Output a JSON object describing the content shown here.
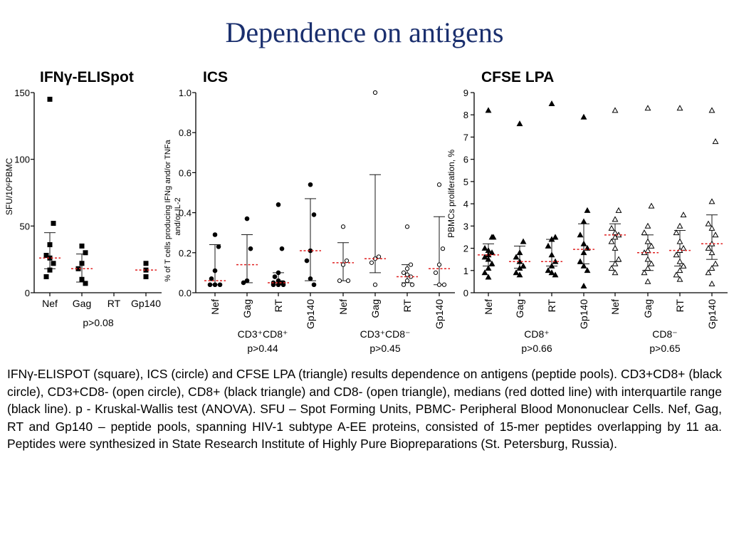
{
  "title": "Dependence on antigens",
  "panels": {
    "elispot": "IFNγ-ELISpot",
    "ics": "ICS",
    "cfse": "CFSE LPA"
  },
  "colors": {
    "title": "#1a2f6e",
    "median": "#e02020",
    "marks": "#000000"
  },
  "caption": "IFNγ-ELISPOT (square), ICS (circle) and CFSE LPA (triangle) results dependence on antigens (peptide pools). CD3+CD8+ (black circle), CD3+CD8- (open circle), CD8+ (black triangle) and CD8- (open triangle), medians (red dotted line) with interquartile range (black line). p - Kruskal-Wallis test (ANOVA). SFU – Spot Forming Units, PBMC- Peripheral Blood Mononuclear Cells. Nef, Gag, RT and Gp140 – peptide pools, spanning HIV-1 subtype A-EE proteins, consisted of 15-mer peptides overlapping by 11 aa. Peptides were synthesized in State Research Institute of Highly Pure Biopreparations (St. Petersburg, Russia).",
  "chart_data": [
    {
      "type": "scatter",
      "title": "IFNγ-ELISpot",
      "ylabel": "SFU/10⁶PBMC",
      "ylim": [
        0,
        150
      ],
      "yticks": [
        0,
        50,
        100,
        150
      ],
      "categories": [
        "Nef",
        "Gag",
        "RT",
        "Gp140"
      ],
      "marker": "filled-square",
      "points": [
        [
          145,
          52,
          36,
          28,
          26,
          22,
          17,
          12
        ],
        [
          35,
          30,
          22,
          18,
          10,
          7
        ],
        [],
        [
          22,
          17,
          12
        ]
      ],
      "medians": [
        26,
        18,
        null,
        17
      ],
      "iqr": [
        [
          18,
          45
        ],
        [
          8,
          29
        ],
        null,
        null
      ],
      "groups": [],
      "pvalues": [
        "p>0.08"
      ]
    },
    {
      "type": "scatter",
      "title": "ICS",
      "ylabel": "% of T cells producing IFNg and/or TNFa and/or IL-2",
      "ylim": [
        0,
        1.0
      ],
      "yticks": [
        0.0,
        0.2,
        0.4,
        0.6,
        0.8,
        1.0
      ],
      "categories": [
        "Nef",
        "Gag",
        "RT",
        "Gp140",
        "Nef",
        "Gag",
        "RT",
        "Gp140"
      ],
      "marker": [
        "filled-circle",
        "filled-circle",
        "filled-circle",
        "filled-circle",
        "open-circle",
        "open-circle",
        "open-circle",
        "open-circle"
      ],
      "points": [
        [
          0.29,
          0.23,
          0.11,
          0.07,
          0.04,
          0.04,
          0.04
        ],
        [
          0.37,
          0.22,
          0.06,
          0.05
        ],
        [
          0.44,
          0.22,
          0.1,
          0.08,
          0.06,
          0.05,
          0.05,
          0.05,
          0.04,
          0.04,
          0.04
        ],
        [
          0.54,
          0.39,
          0.21,
          0.16,
          0.07,
          0.04
        ],
        [
          0.33,
          0.16,
          0.14,
          0.06,
          0.06
        ],
        [
          1.0,
          0.18,
          0.17,
          0.15,
          0.04
        ],
        [
          0.33,
          0.14,
          0.12,
          0.1,
          0.09,
          0.08,
          0.06,
          0.04,
          0.04
        ],
        [
          0.54,
          0.22,
          0.14,
          0.1,
          0.04,
          0.04
        ]
      ],
      "medians": [
        0.06,
        0.14,
        0.05,
        0.21,
        0.15,
        0.17,
        0.08,
        0.12
      ],
      "iqr": [
        [
          0.04,
          0.24
        ],
        [
          0.05,
          0.29
        ],
        [
          0.04,
          0.1
        ],
        [
          0.06,
          0.47
        ],
        [
          0.06,
          0.25
        ],
        [
          0.1,
          0.59
        ],
        [
          0.05,
          0.14
        ],
        [
          0.04,
          0.38
        ]
      ],
      "groups": [
        {
          "label": "CD3⁺CD8⁺",
          "pvalue": "p>0.44"
        },
        {
          "label": "CD3⁺CD8⁻",
          "pvalue": "p>0.45"
        }
      ]
    },
    {
      "type": "scatter",
      "title": "CFSE LPA",
      "ylabel": "PBMCs proliferation, %",
      "ylim": [
        0,
        9
      ],
      "yticks": [
        0,
        1,
        2,
        3,
        4,
        5,
        6,
        7,
        8,
        9
      ],
      "categories": [
        "Nef",
        "Gag",
        "RT",
        "Gp140",
        "Nef",
        "Gag",
        "RT",
        "Gp140"
      ],
      "marker": [
        "filled-triangle",
        "filled-triangle",
        "filled-triangle",
        "filled-triangle",
        "open-triangle",
        "open-triangle",
        "open-triangle",
        "open-triangle"
      ],
      "points": [
        [
          8.2,
          2.5,
          2.5,
          2.0,
          1.9,
          1.8,
          1.7,
          1.6,
          1.5,
          1.3,
          1.1,
          0.9,
          0.7
        ],
        [
          7.6,
          2.3,
          1.8,
          1.6,
          1.4,
          1.2,
          1.1,
          0.9,
          0.8
        ],
        [
          8.5,
          2.5,
          2.4,
          2.1,
          1.7,
          1.4,
          1.2,
          1.0,
          0.9,
          0.8
        ],
        [
          7.9,
          3.7,
          3.2,
          2.6,
          2.2,
          2.0,
          1.8,
          1.4,
          1.2,
          1.0,
          0.3
        ],
        [
          8.2,
          3.7,
          3.3,
          2.9,
          2.7,
          2.6,
          2.5,
          2.3,
          2.0,
          1.5,
          1.3,
          1.1,
          0.9
        ],
        [
          8.3,
          3.9,
          3.0,
          2.7,
          2.3,
          2.1,
          1.9,
          1.8,
          1.5,
          1.3,
          1.1,
          0.9,
          0.5
        ],
        [
          8.3,
          3.5,
          3.0,
          2.7,
          2.3,
          2.0,
          1.9,
          1.7,
          1.4,
          1.2,
          1.0,
          0.8,
          0.6
        ],
        [
          8.2,
          6.8,
          4.1,
          3.1,
          2.9,
          2.6,
          2.2,
          2.0,
          1.8,
          1.3,
          1.1,
          0.9,
          0.4
        ]
      ],
      "medians": [
        1.7,
        1.4,
        1.4,
        1.95,
        2.6,
        1.8,
        1.9,
        2.2
      ],
      "iqr": [
        [
          1.2,
          2.2
        ],
        [
          1.1,
          2.1
        ],
        [
          1.2,
          2.4
        ],
        [
          1.3,
          3.1
        ],
        [
          1.4,
          3.1
        ],
        [
          1.0,
          2.6
        ],
        [
          1.2,
          2.8
        ],
        [
          1.5,
          3.5
        ]
      ],
      "groups": [
        {
          "label": "CD8⁺",
          "pvalue": "p>0.66"
        },
        {
          "label": "CD8⁻",
          "pvalue": "p>0.65"
        }
      ]
    }
  ]
}
